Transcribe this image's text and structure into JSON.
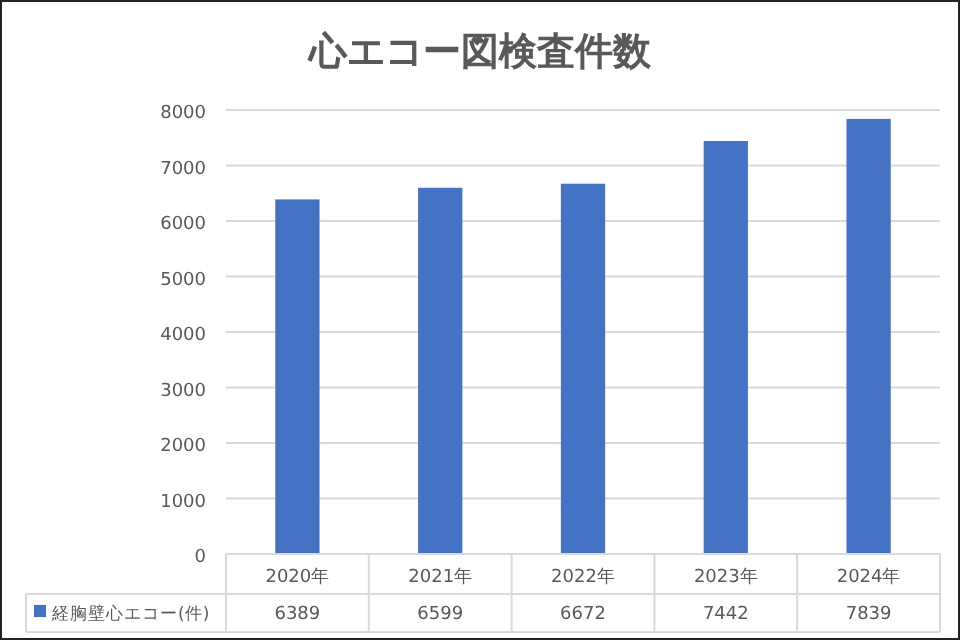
{
  "chart_data": {
    "type": "bar",
    "title": "心エコー図検査件数",
    "categories": [
      "2020年",
      "2021年",
      "2022年",
      "2023年",
      "2024年"
    ],
    "series": [
      {
        "name": "経胸壁心エコー(件)",
        "color": "#4472c4",
        "values": [
          6389,
          6599,
          6672,
          7442,
          7839
        ]
      }
    ],
    "ylim": [
      0,
      8000
    ],
    "yticks": [
      0,
      1000,
      2000,
      3000,
      4000,
      5000,
      6000,
      7000,
      8000
    ],
    "grid": "y",
    "data_labels": true,
    "legend": "bottom"
  }
}
